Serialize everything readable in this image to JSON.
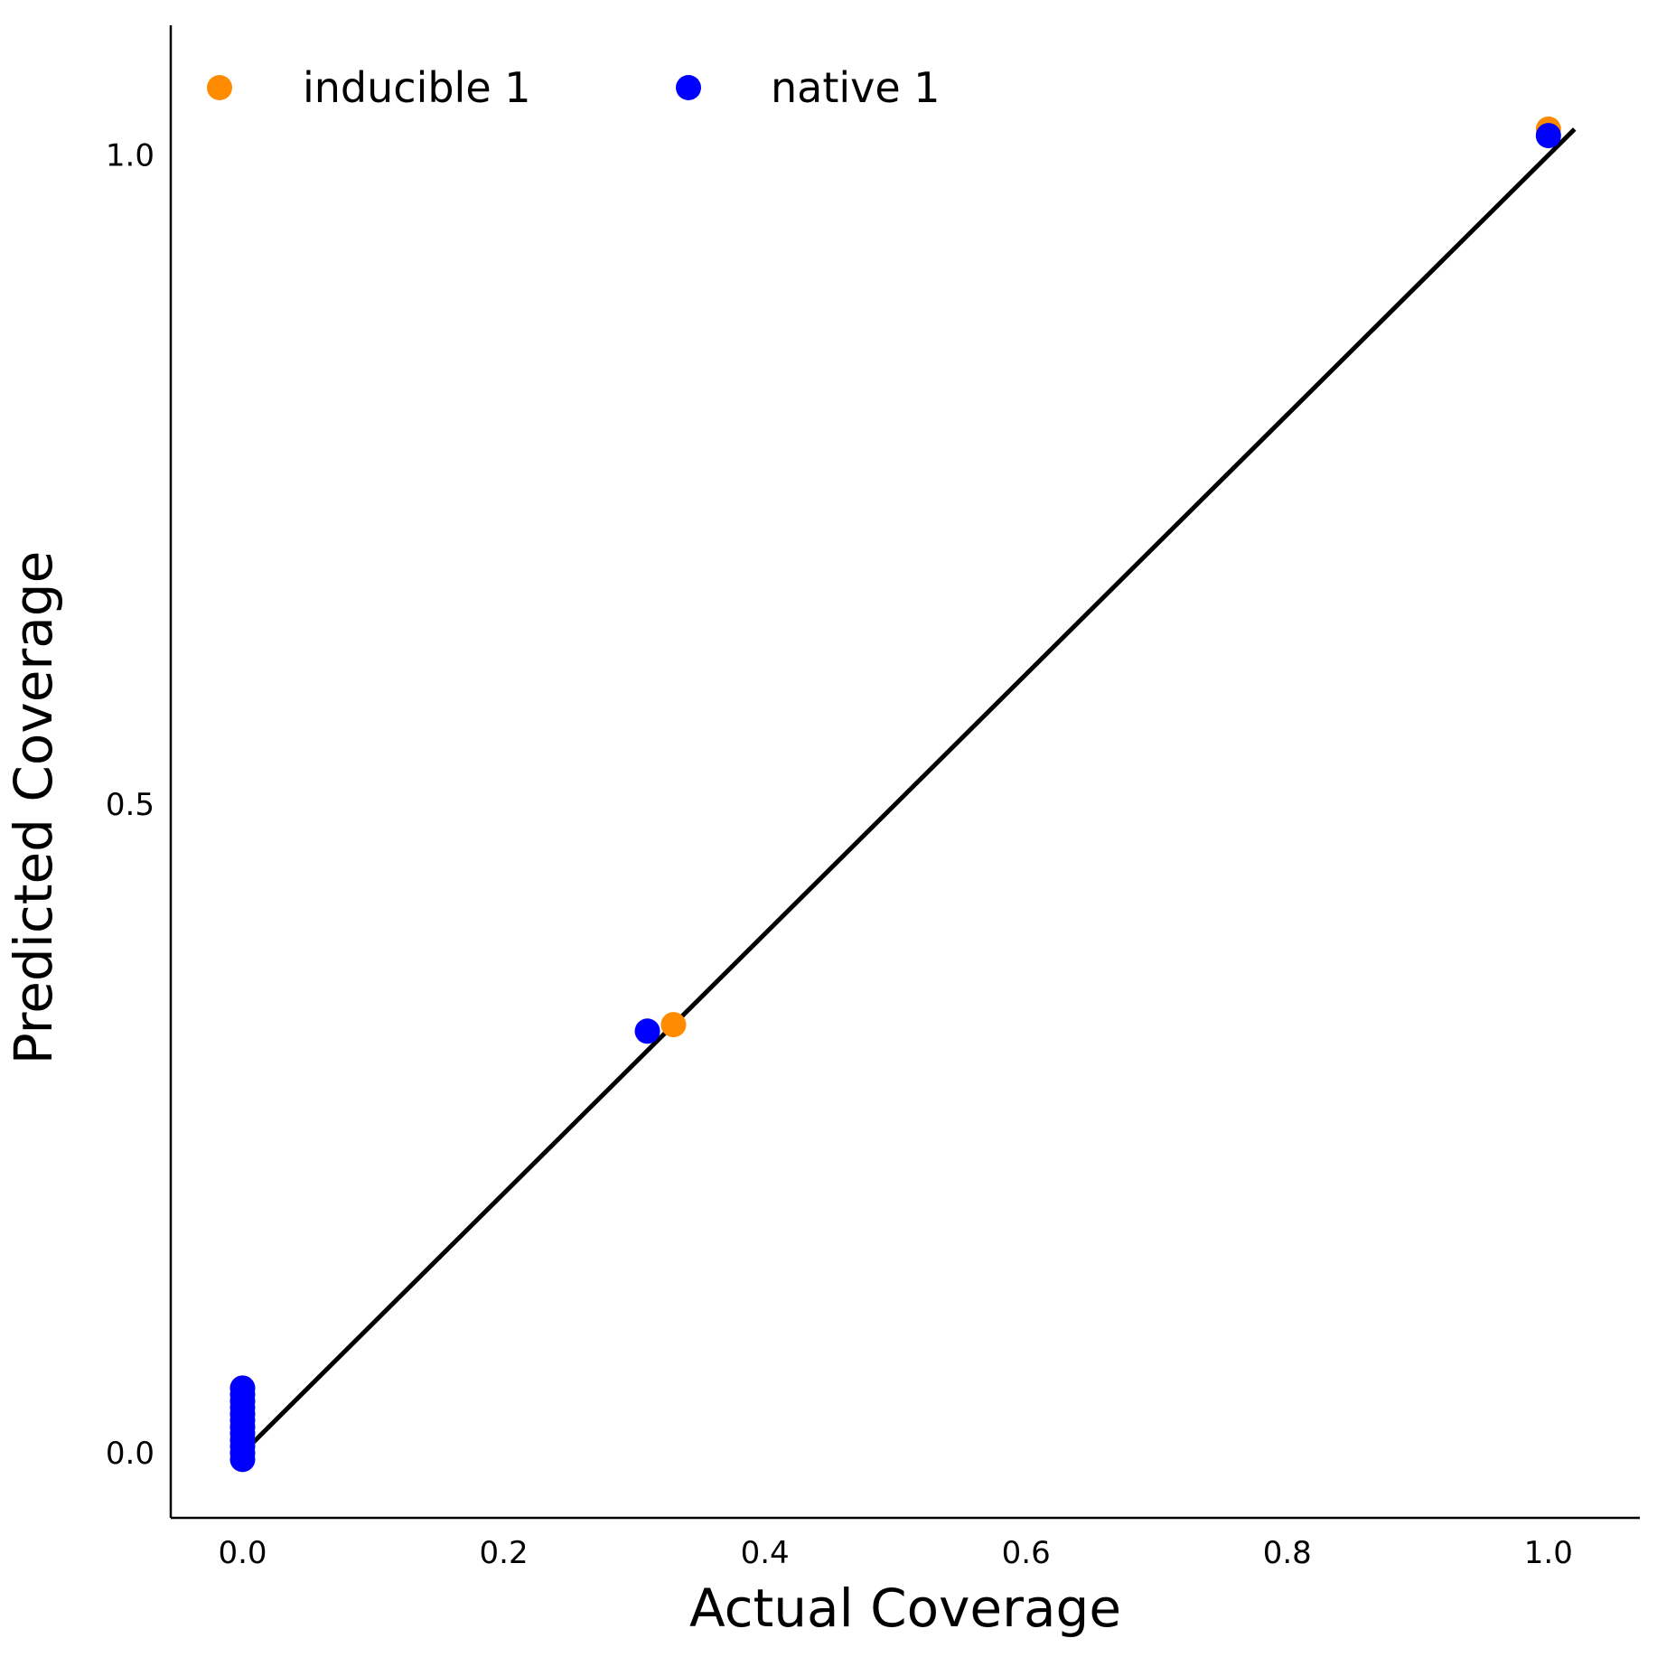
{
  "chart_data": {
    "type": "scatter",
    "title": "",
    "xlabel": "Actual Coverage",
    "ylabel": "Predicted Coverage",
    "xlim": [
      -0.055,
      1.07
    ],
    "ylim": [
      -0.05,
      1.1
    ],
    "xticks": [
      0.0,
      0.2,
      0.4,
      0.6,
      0.8,
      1.0
    ],
    "xtick_labels": [
      "0.0",
      "0.2",
      "0.4",
      "0.6",
      "0.8",
      "1.0"
    ],
    "yticks": [
      0.0,
      0.5,
      1.0
    ],
    "ytick_labels": [
      "0.0",
      "0.5",
      "1.0"
    ],
    "grid": false,
    "legend_position": "top-left",
    "reference_line": {
      "x": [
        0.0,
        1.02
      ],
      "y": [
        0.0,
        1.02
      ],
      "color": "#000000"
    },
    "series": [
      {
        "name": "inducible 1",
        "color": "#ff8c00",
        "x": [
          0.0,
          0.0,
          0.0,
          0.0,
          0.0,
          0.0,
          0.33,
          1.0
        ],
        "y": [
          0.0,
          0.01,
          0.02,
          0.03,
          0.04,
          0.05,
          0.33,
          1.02
        ]
      },
      {
        "name": "native 1",
        "color": "#0000ff",
        "x": [
          0.0,
          0.0,
          0.0,
          0.0,
          0.0,
          0.0,
          0.0,
          0.0,
          0.0,
          0.0,
          0.0,
          0.0,
          0.31,
          1.0
        ],
        "y": [
          -0.005,
          0.0,
          0.005,
          0.01,
          0.015,
          0.02,
          0.025,
          0.03,
          0.035,
          0.04,
          0.045,
          0.05,
          0.325,
          1.015
        ]
      }
    ]
  }
}
